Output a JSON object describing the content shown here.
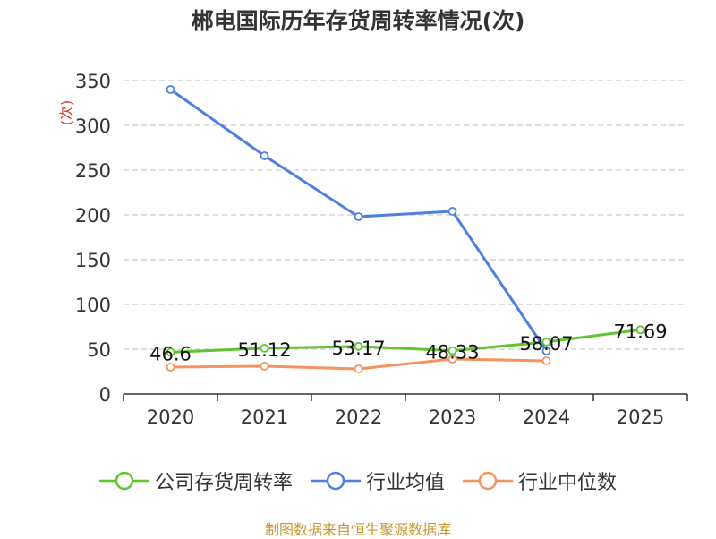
{
  "title": "郴电国际历年存货周转率情况(次)",
  "source": "制图数据来自恒生聚源数据库",
  "chart_data": {
    "type": "line",
    "title": "郴电国际历年存货周转率情况(次)",
    "ylabel": "(次)",
    "xlabel": "",
    "categories": [
      "2020",
      "2021",
      "2022",
      "2023",
      "2024",
      "2025"
    ],
    "ylim": [
      0,
      350
    ],
    "yticks": [
      0,
      50,
      100,
      150,
      200,
      250,
      300,
      350
    ],
    "grid": "horizontal-dashed",
    "legend": "bottom",
    "series": [
      {
        "name": "公司存货周转率",
        "color": "#5fc52e",
        "labels": true,
        "values": [
          46.6,
          51.12,
          53.17,
          48.33,
          58.07,
          71.69
        ]
      },
      {
        "name": "行业均值",
        "color": "#4f7fdf",
        "labels": false,
        "values": [
          340,
          266,
          198,
          204,
          48,
          null
        ]
      },
      {
        "name": "行业中位数",
        "color": "#f5925e",
        "labels": false,
        "values": [
          30,
          31,
          28,
          39,
          37,
          null
        ]
      }
    ]
  }
}
